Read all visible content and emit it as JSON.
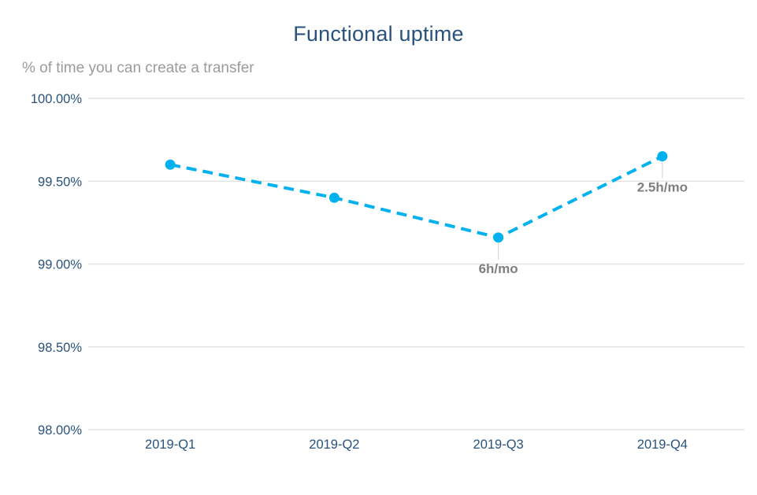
{
  "title": "Functional uptime",
  "subtitle": "% of time you can create a transfer",
  "colors": {
    "accent": "#00b1ef",
    "title_text": "#29527c",
    "axis_text": "#29527c",
    "subtitle_text": "#9b9b9b",
    "annotation_text": "#7f7f7f",
    "gridline": "#e4e4e4",
    "connector": "#d9d9d9",
    "background": "#ffffff"
  },
  "chart_data": {
    "type": "line",
    "line_style": "dashed",
    "marker": "circle",
    "title": "Functional uptime",
    "subtitle": "% of time you can create a transfer",
    "xlabel": "",
    "ylabel": "",
    "categories": [
      "2019-Q1",
      "2019-Q2",
      "2019-Q3",
      "2019-Q4"
    ],
    "series": [
      {
        "name": "Functional uptime",
        "values": [
          99.6,
          99.4,
          99.16,
          99.65
        ]
      }
    ],
    "annotations": [
      {
        "category": "2019-Q3",
        "label": "6h/mo"
      },
      {
        "category": "2019-Q4",
        "label": "2.5h/mo"
      }
    ],
    "yticks": [
      "100.00%",
      "99.50%",
      "99.00%",
      "98.50%",
      "98.00%"
    ],
    "ytick_values": [
      100.0,
      99.5,
      99.0,
      98.5,
      98.0
    ],
    "ylim": [
      98.0,
      100.0
    ],
    "grid": true,
    "legend_position": "none"
  }
}
